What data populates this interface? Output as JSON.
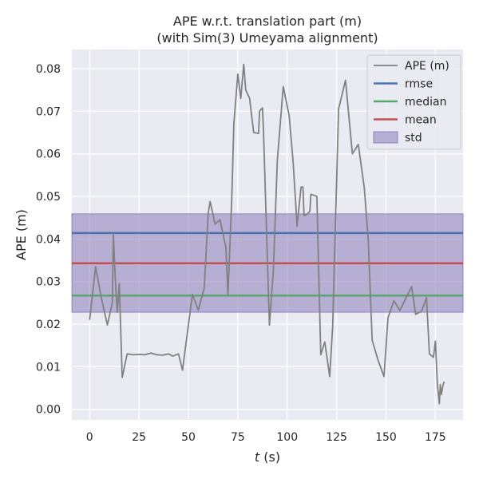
{
  "chart_data": {
    "type": "line",
    "title": "APE w.r.t. translation part (m)",
    "subtitle": "(with Sim(3) Umeyama alignment)",
    "xlabel_var": "t",
    "xlabel_unit": " (s)",
    "ylabel": "APE (m)",
    "xlim": [
      -9,
      189
    ],
    "ylim": [
      -0.0025,
      0.0845
    ],
    "xticks": [
      0,
      25,
      50,
      75,
      100,
      125,
      150,
      175
    ],
    "yticks": [
      0.0,
      0.01,
      0.02,
      0.03,
      0.04,
      0.05,
      0.06,
      0.07,
      0.08
    ],
    "ytick_labels": [
      "0.00",
      "0.01",
      "0.02",
      "0.03",
      "0.04",
      "0.05",
      "0.06",
      "0.07",
      "0.08"
    ],
    "grid": true,
    "legend_position": "top-right",
    "series": [
      {
        "name": "APE (m)",
        "color": "#808080",
        "x": [
          0,
          3,
          6,
          9,
          11.5,
          12,
          13,
          14,
          15,
          16.5,
          19,
          22,
          25,
          28,
          31,
          34,
          37,
          40,
          42,
          45,
          47,
          52,
          55,
          58,
          60,
          61,
          63.5,
          66,
          69,
          70,
          72,
          73,
          75,
          76.5,
          78,
          79,
          81,
          83,
          85.5,
          86,
          87.5,
          88,
          91,
          93,
          95,
          98,
          101,
          103,
          105,
          107,
          108,
          108.5,
          110,
          111.5,
          112,
          115,
          117,
          119,
          121.5,
          123,
          126,
          129.5,
          133,
          136,
          139,
          141,
          143,
          146,
          149,
          151,
          154,
          157,
          160,
          163,
          165,
          168,
          170.5,
          172,
          174,
          175,
          176,
          177,
          177.5,
          178,
          179,
          179.5
        ],
        "values": [
          0.021,
          0.0335,
          0.026,
          0.0198,
          0.025,
          0.0412,
          0.0305,
          0.0228,
          0.0295,
          0.0075,
          0.013,
          0.0128,
          0.0129,
          0.0128,
          0.0132,
          0.0128,
          0.0127,
          0.013,
          0.0125,
          0.013,
          0.0092,
          0.027,
          0.0233,
          0.0285,
          0.046,
          0.0488,
          0.0435,
          0.0445,
          0.038,
          0.0268,
          0.0505,
          0.067,
          0.0787,
          0.073,
          0.081,
          0.075,
          0.073,
          0.065,
          0.0648,
          0.07,
          0.0708,
          0.065,
          0.0198,
          0.0325,
          0.0585,
          0.0758,
          0.069,
          0.058,
          0.043,
          0.0522,
          0.0522,
          0.0455,
          0.0458,
          0.0465,
          0.0505,
          0.05,
          0.0128,
          0.0158,
          0.0077,
          0.0195,
          0.0705,
          0.0773,
          0.06,
          0.0622,
          0.052,
          0.04,
          0.0162,
          0.0115,
          0.0077,
          0.0215,
          0.0255,
          0.0232,
          0.026,
          0.0288,
          0.0223,
          0.023,
          0.0262,
          0.013,
          0.0122,
          0.016,
          0.006,
          0.0013,
          0.0058,
          0.0035,
          0.006,
          0.0065
        ]
      },
      {
        "name": "rmse",
        "color": "#4c72b0",
        "value": 0.0414
      },
      {
        "name": "median",
        "color": "#55a868",
        "value": 0.0267
      },
      {
        "name": "mean",
        "color": "#c44e52",
        "value": 0.0343
      },
      {
        "name": "std",
        "color": "#8172b3",
        "range": [
          0.0228,
          0.0459
        ]
      }
    ]
  },
  "style": {
    "plot_background": "#eaeaf2",
    "grid_color": "#ffffff",
    "std_fill": "#8172b3",
    "legend_background": "#eaeaf2",
    "legend_border": "#cccccc"
  }
}
